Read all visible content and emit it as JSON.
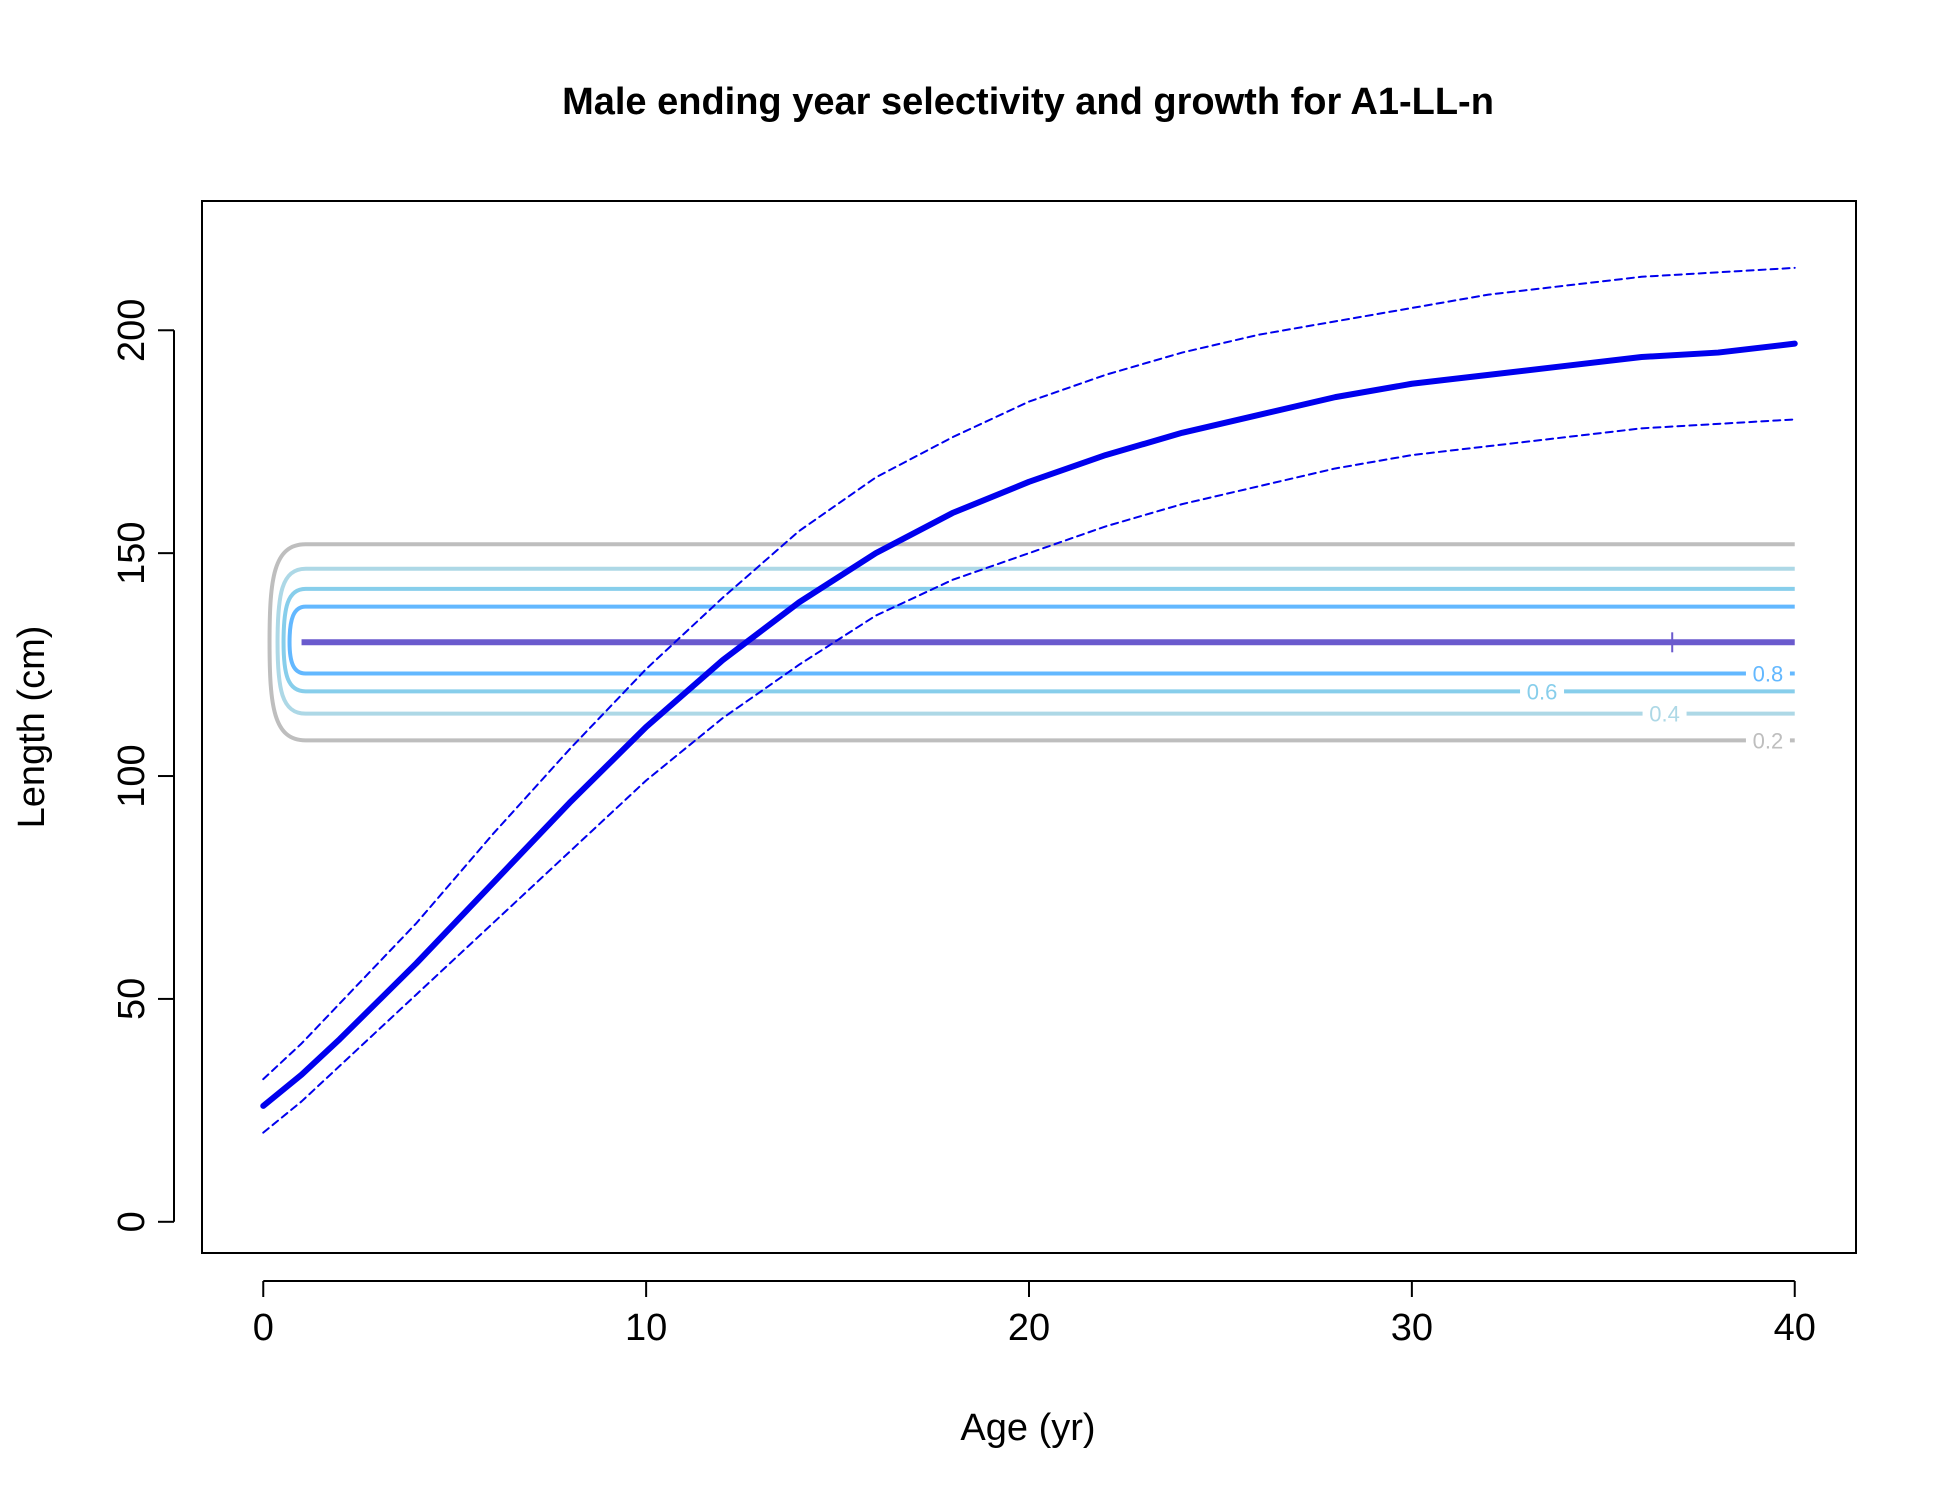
{
  "chart_data": {
    "type": "line",
    "title": "Male ending year selectivity and growth for A1-LL-n",
    "xlabel": "Age (yr)",
    "ylabel": "Length (cm)",
    "xlim": [
      -1.6,
      41.6
    ],
    "ylim": [
      -7,
      229
    ],
    "xticks": [
      0,
      10,
      20,
      30,
      40
    ],
    "yticks": [
      0,
      50,
      100,
      150,
      200
    ],
    "grid": false,
    "growth": {
      "mean": {
        "x": [
          0,
          1,
          2,
          4,
          6,
          8,
          10,
          12,
          14,
          16,
          18,
          20,
          22,
          24,
          26,
          28,
          30,
          32,
          34,
          36,
          38,
          40
        ],
        "y": [
          26,
          33,
          41,
          58,
          76,
          94,
          111,
          126,
          139,
          150,
          159,
          166,
          172,
          177,
          181,
          185,
          188,
          190,
          192,
          194,
          195,
          197
        ],
        "color": "#0000ee"
      },
      "upper": {
        "x": [
          0,
          1,
          2,
          4,
          6,
          8,
          10,
          12,
          14,
          16,
          18,
          20,
          22,
          24,
          26,
          28,
          30,
          32,
          34,
          36,
          38,
          40
        ],
        "y": [
          32,
          40,
          49,
          67,
          87,
          106,
          124,
          140,
          155,
          167,
          176,
          184,
          190,
          195,
          199,
          202,
          205,
          208,
          210,
          212,
          213,
          214
        ],
        "color": "#0000ee"
      },
      "lower": {
        "x": [
          0,
          1,
          2,
          4,
          6,
          8,
          10,
          12,
          14,
          16,
          18,
          20,
          22,
          24,
          26,
          28,
          30,
          32,
          34,
          36,
          38,
          40
        ],
        "y": [
          20,
          27,
          35,
          51,
          67,
          83,
          99,
          113,
          125,
          136,
          144,
          150,
          156,
          161,
          165,
          169,
          172,
          174,
          176,
          178,
          179,
          180
        ],
        "color": "#0000ee"
      }
    },
    "selectivity_contours": {
      "x_start": 1,
      "x_end": 40,
      "peak_length": 130,
      "levels": [
        {
          "level": "0.2",
          "ylow": 108,
          "yhigh": 152,
          "color": "#bebebe",
          "label": "0.2",
          "label_x": 39.3
        },
        {
          "level": "0.4",
          "ylow": 114,
          "yhigh": 146.5,
          "color": "#add8e6",
          "label": "0.4",
          "label_x": 36.6
        },
        {
          "level": "0.6",
          "ylow": 119,
          "yhigh": 142,
          "color": "#87ceeb",
          "label": "0.6",
          "label_x": 33.4
        },
        {
          "level": "0.8",
          "ylow": 123,
          "yhigh": 138,
          "color": "#63b8ff",
          "label": "0.8",
          "label_x": 39.3
        },
        {
          "level": "1.0",
          "ylow": 130,
          "yhigh": 130,
          "color": "#6a5acd",
          "label": "",
          "label_x": 0
        }
      ],
      "peak_marker": {
        "x": 36.8,
        "y": 130,
        "symbol": "+"
      }
    }
  }
}
